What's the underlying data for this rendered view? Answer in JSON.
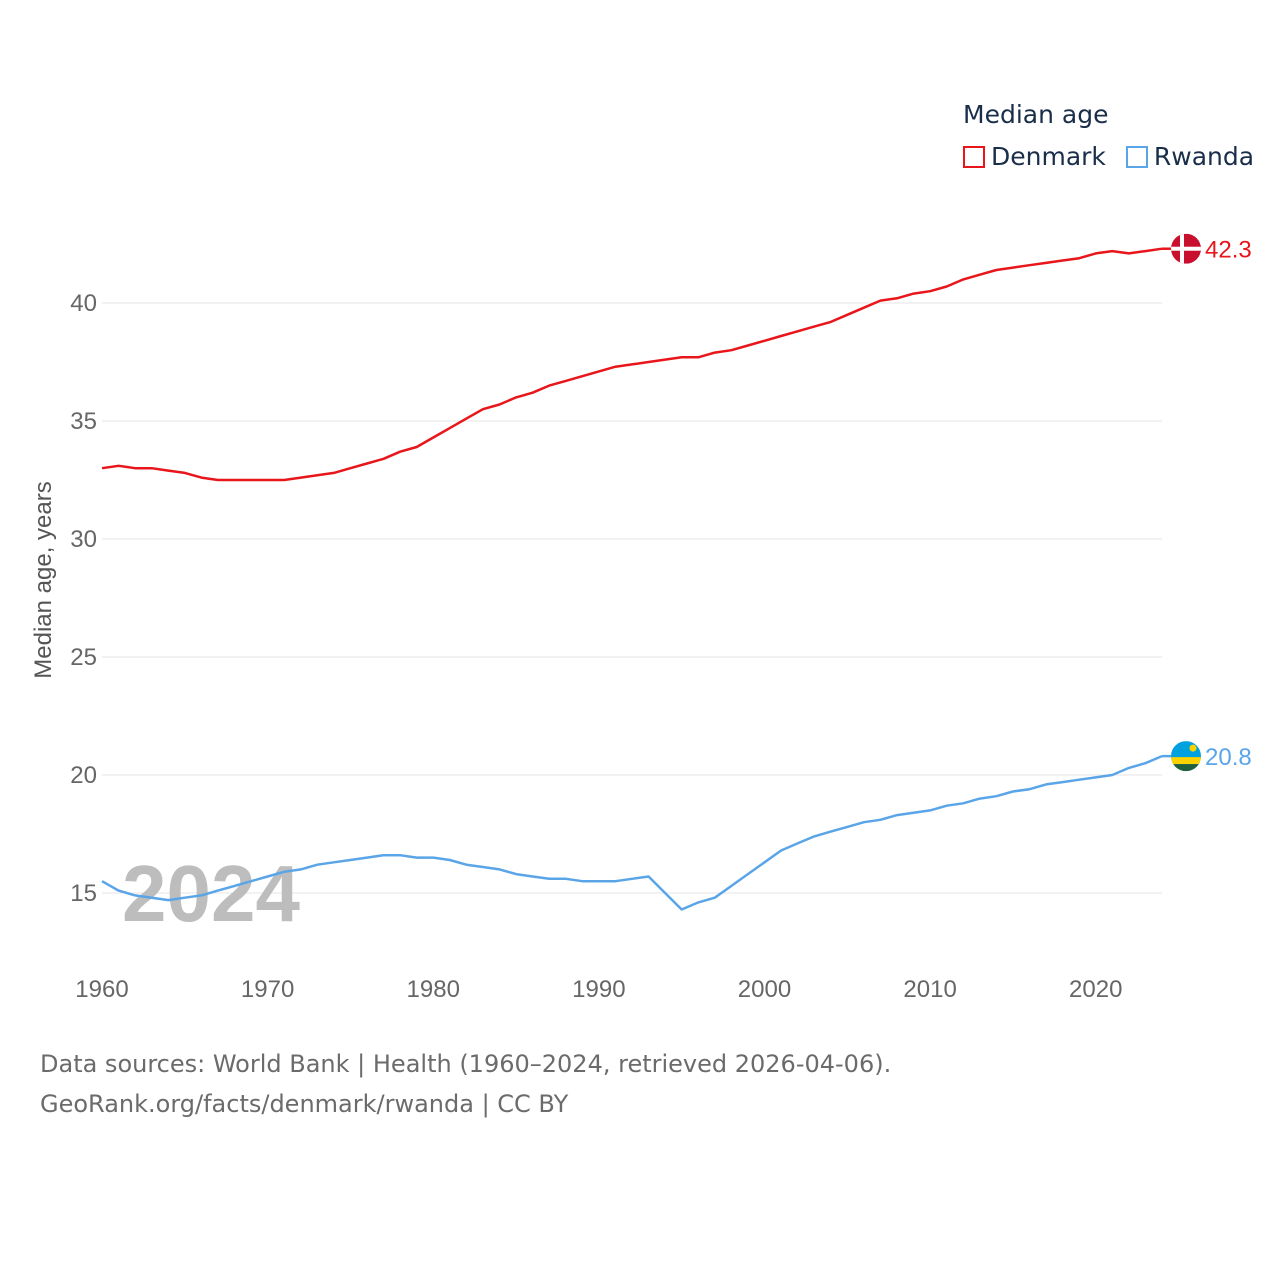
{
  "legend": {
    "title": "Median age"
  },
  "footer": {
    "line1": "Data sources: World Bank | Health (1960–2024, retrieved 2026-04-06).",
    "line2": "GeoRank.org/facts/denmark/rwanda | CC BY"
  },
  "chart_data": {
    "type": "line",
    "title": "Median age",
    "xlabel": "",
    "ylabel": "Median age, years",
    "year_watermark": "2024",
    "xlim": [
      1960,
      2024
    ],
    "ylim": [
      12.5,
      45
    ],
    "xticks": [
      1960,
      1970,
      1980,
      1990,
      2000,
      2010,
      2020
    ],
    "yticks": [
      15,
      20,
      25,
      30,
      35,
      40
    ],
    "grid": true,
    "legend_position": "top-right",
    "x": [
      1960,
      1961,
      1962,
      1963,
      1964,
      1965,
      1966,
      1967,
      1968,
      1969,
      1970,
      1971,
      1972,
      1973,
      1974,
      1975,
      1976,
      1977,
      1978,
      1979,
      1980,
      1981,
      1982,
      1983,
      1984,
      1985,
      1986,
      1987,
      1988,
      1989,
      1990,
      1991,
      1992,
      1993,
      1994,
      1995,
      1996,
      1997,
      1998,
      1999,
      2000,
      2001,
      2002,
      2003,
      2004,
      2005,
      2006,
      2007,
      2008,
      2009,
      2010,
      2011,
      2012,
      2013,
      2014,
      2015,
      2016,
      2017,
      2018,
      2019,
      2020,
      2021,
      2022,
      2023,
      2024
    ],
    "series": [
      {
        "name": "Denmark",
        "color": "#e8161b",
        "end_label": "42.3",
        "flag": "denmark-flag-icon",
        "values": [
          33.0,
          33.1,
          33.0,
          33.0,
          32.9,
          32.8,
          32.6,
          32.5,
          32.5,
          32.5,
          32.5,
          32.5,
          32.6,
          32.7,
          32.8,
          33.0,
          33.2,
          33.4,
          33.7,
          33.9,
          34.3,
          34.7,
          35.1,
          35.5,
          35.7,
          36.0,
          36.2,
          36.5,
          36.7,
          36.9,
          37.1,
          37.3,
          37.4,
          37.5,
          37.6,
          37.7,
          37.7,
          37.9,
          38.0,
          38.2,
          38.4,
          38.6,
          38.8,
          39.0,
          39.2,
          39.5,
          39.8,
          40.1,
          40.2,
          40.4,
          40.5,
          40.7,
          41.0,
          41.2,
          41.4,
          41.5,
          41.6,
          41.7,
          41.8,
          41.9,
          42.1,
          42.2,
          42.1,
          42.2,
          42.3
        ]
      },
      {
        "name": "Rwanda",
        "color": "#5aa5e8",
        "end_label": "20.8",
        "flag": "rwanda-flag-icon",
        "values": [
          15.5,
          15.1,
          14.9,
          14.8,
          14.7,
          14.8,
          14.9,
          15.1,
          15.3,
          15.5,
          15.7,
          15.9,
          16.0,
          16.2,
          16.3,
          16.4,
          16.5,
          16.6,
          16.6,
          16.5,
          16.5,
          16.4,
          16.2,
          16.1,
          16.0,
          15.8,
          15.7,
          15.6,
          15.6,
          15.5,
          15.5,
          15.5,
          15.6,
          15.7,
          15.0,
          14.3,
          14.6,
          14.8,
          15.3,
          15.8,
          16.3,
          16.8,
          17.1,
          17.4,
          17.6,
          17.8,
          18.0,
          18.1,
          18.3,
          18.4,
          18.5,
          18.7,
          18.8,
          19.0,
          19.1,
          19.3,
          19.4,
          19.6,
          19.7,
          19.8,
          19.9,
          20.0,
          20.3,
          20.5,
          20.8
        ]
      }
    ]
  }
}
